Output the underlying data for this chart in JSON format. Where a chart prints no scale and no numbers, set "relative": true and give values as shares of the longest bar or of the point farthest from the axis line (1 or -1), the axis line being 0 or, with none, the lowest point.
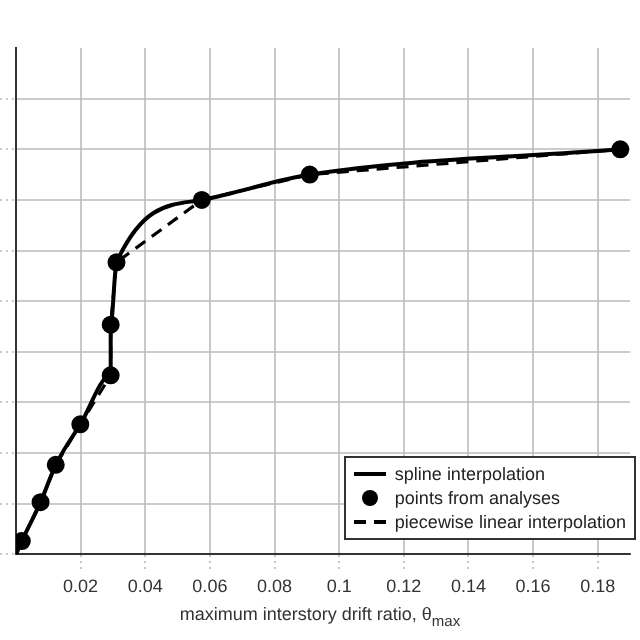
{
  "chart_data": {
    "type": "line",
    "xlabel": "maximum interstory drift ratio, θ$_{max}$",
    "relative": true,
    "xlim": [
      0,
      0.19
    ],
    "xticks": [
      0.02,
      0.04,
      0.06,
      0.08,
      0.1,
      0.12,
      0.14,
      0.16,
      0.18
    ],
    "grid": true,
    "legend": "bottom right",
    "series": [
      {
        "name": "spline interpolation",
        "color": "#000000",
        "line_style": "solid",
        "marker": "none",
        "x": [
          0,
          0.0018,
          0.0076,
          0.0123,
          0.0199,
          0.0293,
          0.0293,
          0.0311,
          0.0575,
          0.0909,
          0.187
        ],
        "values": [
          0,
          0.033,
          0.129,
          0.221,
          0.321,
          0.442,
          0.567,
          0.721,
          0.875,
          0.9375,
          1
        ]
      },
      {
        "name": "points from analyses",
        "type": "scatter",
        "color": "#000000",
        "marker": "circle",
        "x": [
          0.0018,
          0.0076,
          0.0123,
          0.0199,
          0.0293,
          0.0293,
          0.0311,
          0.0575,
          0.0909,
          0.187
        ],
        "values": [
          0.033,
          0.129,
          0.221,
          0.321,
          0.442,
          0.567,
          0.721,
          0.875,
          0.9375,
          1
        ]
      },
      {
        "name": "piecewise linear interpolation",
        "color": "#000000",
        "line_style": "dashed",
        "marker": "none",
        "x": [
          0,
          0.0018,
          0.0076,
          0.0123,
          0.0199,
          0.0293,
          0.0293,
          0.0311,
          0.0575,
          0.0909,
          0.187
        ],
        "values": [
          0,
          0.033,
          0.129,
          0.221,
          0.321,
          0.442,
          0.567,
          0.721,
          0.875,
          0.9375,
          1
        ]
      }
    ]
  }
}
